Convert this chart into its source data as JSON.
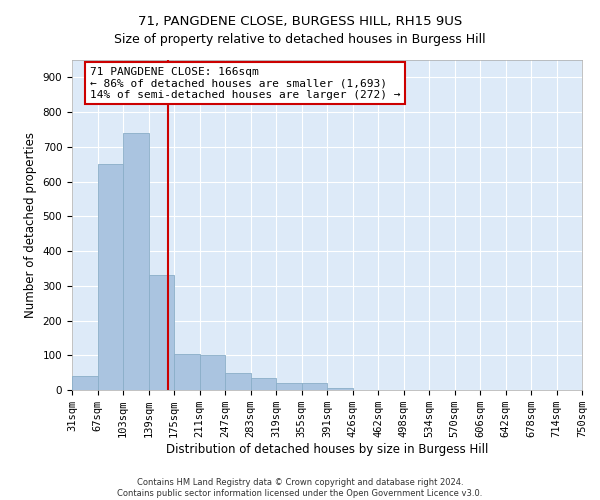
{
  "title": "71, PANGDENE CLOSE, BURGESS HILL, RH15 9US",
  "subtitle": "Size of property relative to detached houses in Burgess Hill",
  "xlabel": "Distribution of detached houses by size in Burgess Hill",
  "ylabel": "Number of detached properties",
  "footer_line1": "Contains HM Land Registry data © Crown copyright and database right 2024.",
  "footer_line2": "Contains public sector information licensed under the Open Government Licence v3.0.",
  "bin_labels": [
    "31sqm",
    "67sqm",
    "103sqm",
    "139sqm",
    "175sqm",
    "211sqm",
    "247sqm",
    "283sqm",
    "319sqm",
    "355sqm",
    "391sqm",
    "426sqm",
    "462sqm",
    "498sqm",
    "534sqm",
    "570sqm",
    "606sqm",
    "642sqm",
    "678sqm",
    "714sqm",
    "750sqm"
  ],
  "bar_values": [
    40,
    650,
    740,
    330,
    105,
    100,
    50,
    35,
    20,
    20,
    5,
    0,
    0,
    0,
    0,
    0,
    0,
    0,
    0,
    0
  ],
  "bar_color": "#aac4e0",
  "bar_edge_color": "#8aaec8",
  "vline_color": "#cc0000",
  "annotation_text": "71 PANGDENE CLOSE: 166sqm\n← 86% of detached houses are smaller (1,693)\n14% of semi-detached houses are larger (272) →",
  "annotation_box_color": "#ffffff",
  "annotation_box_edge": "#cc0000",
  "ylim": [
    0,
    950
  ],
  "yticks": [
    0,
    100,
    200,
    300,
    400,
    500,
    600,
    700,
    800,
    900
  ],
  "bg_color": "#ddeaf8",
  "grid_color": "#ffffff",
  "title_fontsize": 9.5,
  "axis_label_fontsize": 8.5,
  "tick_fontsize": 7.5,
  "annotation_fontsize": 8,
  "footer_fontsize": 6
}
